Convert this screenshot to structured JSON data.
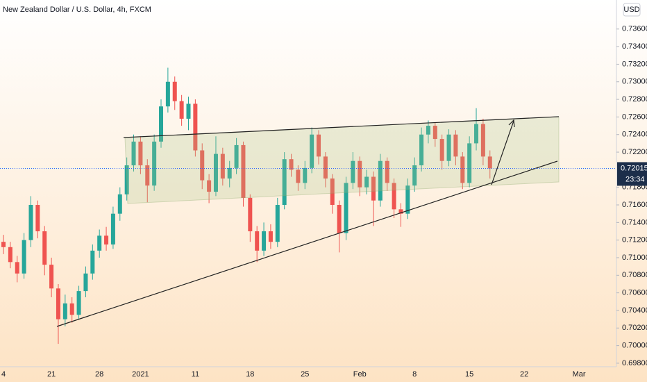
{
  "chart_data": {
    "type": "candlestick",
    "title": "New Zealand Dollar / U.S. Dollar, 4h, FXCM",
    "currency": "USD",
    "countdown": "23:34",
    "last_price": 0.72015,
    "up_color": "#26a69a",
    "down_color": "#ef5350",
    "ylim": [
      0.6976,
      0.7393
    ],
    "yticks": [
      {
        "value": 0.698,
        "label": "0.69800"
      },
      {
        "value": 0.7,
        "label": "0.70000"
      },
      {
        "value": 0.702,
        "label": "0.70200"
      },
      {
        "value": 0.704,
        "label": "0.70400"
      },
      {
        "value": 0.706,
        "label": "0.70600"
      },
      {
        "value": 0.708,
        "label": "0.70800"
      },
      {
        "value": 0.71,
        "label": "0.71000"
      },
      {
        "value": 0.712,
        "label": "0.71200"
      },
      {
        "value": 0.714,
        "label": "0.71400"
      },
      {
        "value": 0.716,
        "label": "0.71600"
      },
      {
        "value": 0.718,
        "label": "0.71800"
      },
      {
        "value": 0.722,
        "label": "0.72200"
      },
      {
        "value": 0.724,
        "label": "0.72400"
      },
      {
        "value": 0.726,
        "label": "0.72600"
      },
      {
        "value": 0.728,
        "label": "0.72800"
      },
      {
        "value": 0.73,
        "label": "0.73000"
      },
      {
        "value": 0.732,
        "label": "0.73200"
      },
      {
        "value": 0.734,
        "label": "0.73400"
      },
      {
        "value": 0.736,
        "label": "0.73600"
      }
    ],
    "categories": [
      "4",
      null,
      null,
      null,
      null,
      null,
      null,
      "21",
      null,
      null,
      null,
      null,
      null,
      null,
      "28",
      null,
      null,
      null,
      null,
      null,
      "2021",
      null,
      null,
      null,
      null,
      null,
      null,
      null,
      "11",
      null,
      null,
      null,
      null,
      null,
      null,
      null,
      "18",
      null,
      null,
      null,
      null,
      null,
      null,
      null,
      "25",
      null,
      null,
      null,
      null,
      null,
      null,
      null,
      "Feb",
      null,
      null,
      null,
      null,
      null,
      null,
      null,
      "8",
      null,
      null,
      null,
      null,
      null,
      null,
      null,
      "15",
      null,
      null,
      null,
      null,
      null,
      null,
      null,
      "22",
      null,
      null,
      null,
      null,
      null,
      null,
      null,
      "Mar",
      null,
      null,
      null,
      null,
      null
    ],
    "open": [
      0.7118,
      0.7112,
      0.7095,
      0.7082,
      0.712,
      0.716,
      0.713,
      0.7092,
      0.7065,
      0.703,
      0.7048,
      0.7035,
      0.7062,
      0.7082,
      0.7108,
      0.7125,
      0.7115,
      0.715,
      0.7172,
      0.7205,
      0.7232,
      0.7205,
      0.7182,
      0.7232,
      0.7272,
      0.73,
      0.7278,
      0.7258,
      0.7275,
      0.7222,
      0.7188,
      0.7175,
      0.7218,
      0.719,
      0.7202,
      0.7228,
      0.7168,
      0.713,
      0.7108,
      0.713,
      0.7118,
      0.716,
      0.7212,
      0.72,
      0.7185,
      0.7202,
      0.724,
      0.7215,
      0.719,
      0.716,
      0.7128,
      0.7185,
      0.721,
      0.718,
      0.7192,
      0.7165,
      0.721,
      0.7185,
      0.7155,
      0.715,
      0.7182,
      0.7205,
      0.724,
      0.725,
      0.7235,
      0.721,
      0.724,
      0.7215,
      0.7185,
      0.723,
      0.7252,
      0.7215,
      null,
      null,
      null,
      null,
      null,
      null,
      null,
      null,
      null,
      null,
      null,
      null,
      null,
      null,
      null,
      null,
      null,
      null
    ],
    "high": [
      0.7126,
      0.7118,
      0.7102,
      0.7128,
      0.717,
      0.7165,
      0.7136,
      0.71,
      0.707,
      0.7058,
      0.7055,
      0.7068,
      0.709,
      0.7115,
      0.7132,
      0.7135,
      0.7158,
      0.718,
      0.7214,
      0.724,
      0.7238,
      0.7212,
      0.724,
      0.728,
      0.7316,
      0.7306,
      0.7285,
      0.7283,
      0.728,
      0.723,
      0.7195,
      0.7238,
      0.7225,
      0.721,
      0.7236,
      0.7232,
      0.7172,
      0.7136,
      0.714,
      0.7138,
      0.7168,
      0.722,
      0.7218,
      0.7205,
      0.721,
      0.7248,
      0.7245,
      0.722,
      0.7195,
      0.7165,
      0.7192,
      0.722,
      0.7215,
      0.72,
      0.7198,
      0.7218,
      0.7214,
      0.719,
      0.7162,
      0.719,
      0.7214,
      0.7248,
      0.7256,
      0.7254,
      0.724,
      0.7246,
      0.7245,
      0.722,
      0.7238,
      0.727,
      0.7258,
      0.7222,
      null,
      null,
      null,
      null,
      null,
      null,
      null,
      null,
      null,
      null,
      null,
      null,
      null,
      null,
      null,
      null,
      null,
      null
    ],
    "low": [
      0.7104,
      0.7088,
      0.7072,
      0.7076,
      0.7112,
      0.7122,
      0.708,
      0.7055,
      0.7002,
      0.7022,
      0.7026,
      0.703,
      0.7055,
      0.7075,
      0.71,
      0.7108,
      0.711,
      0.7142,
      0.7165,
      0.7198,
      0.7195,
      0.7163,
      0.7176,
      0.7225,
      0.7265,
      0.7268,
      0.725,
      0.7245,
      0.7215,
      0.7178,
      0.7162,
      0.717,
      0.7182,
      0.718,
      0.7195,
      0.7158,
      0.7118,
      0.7095,
      0.7102,
      0.711,
      0.7112,
      0.7155,
      0.7192,
      0.7176,
      0.7178,
      0.7196,
      0.7206,
      0.718,
      0.715,
      0.7106,
      0.712,
      0.7178,
      0.717,
      0.7172,
      0.7136,
      0.7158,
      0.7176,
      0.7145,
      0.7135,
      0.7144,
      0.7175,
      0.7198,
      0.723,
      0.7226,
      0.72,
      0.7204,
      0.7205,
      0.7178,
      0.718,
      0.7222,
      0.7205,
      0.719,
      null,
      null,
      null,
      null,
      null,
      null,
      null,
      null,
      null,
      null,
      null,
      null,
      null,
      null,
      null,
      null,
      null,
      null
    ],
    "close": [
      0.7112,
      0.7095,
      0.7082,
      0.712,
      0.716,
      0.713,
      0.7092,
      0.7065,
      0.703,
      0.7048,
      0.7035,
      0.7062,
      0.7082,
      0.7108,
      0.7125,
      0.7115,
      0.715,
      0.7172,
      0.7205,
      0.7232,
      0.7205,
      0.7182,
      0.7232,
      0.7272,
      0.73,
      0.7278,
      0.7258,
      0.7275,
      0.7222,
      0.7188,
      0.7175,
      0.7218,
      0.719,
      0.7202,
      0.7228,
      0.7168,
      0.713,
      0.7108,
      0.713,
      0.7118,
      0.716,
      0.7212,
      0.72,
      0.7185,
      0.7202,
      0.724,
      0.7215,
      0.719,
      0.716,
      0.7128,
      0.7185,
      0.721,
      0.718,
      0.7192,
      0.7165,
      0.721,
      0.7185,
      0.7155,
      0.715,
      0.7182,
      0.7205,
      0.724,
      0.725,
      0.7235,
      0.721,
      0.724,
      0.7215,
      0.7185,
      0.723,
      0.7252,
      0.7215,
      0.72015,
      null,
      null,
      null,
      null,
      null,
      null,
      null,
      null,
      null,
      null,
      null,
      null,
      null,
      null,
      null,
      null,
      null,
      null
    ]
  }
}
